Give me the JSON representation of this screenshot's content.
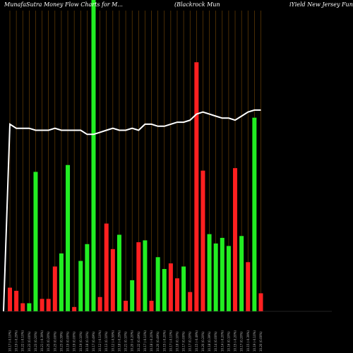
{
  "header": {
    "left": "MunafaSutra  Money Flow  Charts for M...",
    "mid": "(Blackrock Mun",
    "right": "iYield New  Jersey Fund,"
  },
  "chart_data": {
    "type": "bar",
    "title": "MunafaSutra  Money Flow  Charts for M...",
    "x_tick_labels": [
      "",
      ""
    ],
    "categories": [
      "10.17 (-0.10%)",
      "10.19 (-0.29%)",
      "10.22 (-0.10%)",
      "10.23 (0.00%)",
      "10.23 (0.20%)",
      "10.21 (-0.39%)",
      "10.25 (0.20%)",
      "10.23 (0.00%)",
      "10.23 (0.39%)",
      "10.19 (0.00%)",
      "10.19 (0.00%)",
      "10.19 (0.10%)",
      "10.18 (0.10%)",
      "10.17 (0.49%)",
      "10.12 (-0.10%)",
      "10.13 (0.10%)",
      "10.12 (-0.59%)",
      "10.18 (-0.29%)",
      "10.21 (0.10%)",
      "10.20 (-0.20%)",
      "10.22 (0.49%)",
      "10.17 (-0.10%)",
      "10.18 (-0.20%)",
      "10.20 (0.49%)",
      "10.15 (-0.20%)",
      "10.17 (-0.10%)",
      "10.18 (0.10%)",
      "10.17 (0.00%)",
      "10.17 (0.20%)",
      "10.15 (-0.49%)",
      "10.20 (0.20%)",
      "10.18 (0.39%)",
      "10.14 (0.00%)",
      "10.14 (-0.20%)",
      "10.16 (0.10%)",
      "10.15 (-0.20%)",
      "10.17 (0.20%)",
      "10.15 (-0.39%)",
      "10.19 (-0.10%)",
      "10.20 (0.00%)"
    ],
    "series": [
      {
        "colors": [
          "red",
          "red",
          "red",
          "green",
          "green",
          "red",
          "red",
          "red",
          "green",
          "green",
          "red",
          "green",
          "green",
          "green",
          "red",
          "red",
          "red",
          "green",
          "red",
          "green",
          "red",
          "green",
          "red",
          "green",
          "green",
          "red",
          "red",
          "green",
          "red",
          "red",
          "red",
          "green",
          "green",
          "green",
          "green",
          "red",
          "green",
          "red",
          "green",
          "red"
        ],
        "values": [
          38,
          33,
          13,
          13,
          224,
          20,
          20,
          72,
          93,
          235,
          7,
          81,
          108,
          500,
          23,
          141,
          100,
          123,
          17,
          50,
          111,
          114,
          17,
          87,
          68,
          77,
          53,
          72,
          31,
          400,
          226,
          124,
          109,
          118,
          105,
          230,
          121,
          79,
          311,
          29
        ]
      }
    ],
    "price_line": [
      10.12,
      10.1,
      10.1,
      10.1,
      10.09,
      10.09,
      10.09,
      10.1,
      10.09,
      10.09,
      10.09,
      10.09,
      10.07,
      10.07,
      10.08,
      10.09,
      10.1,
      10.09,
      10.09,
      10.1,
      10.09,
      10.12,
      10.12,
      10.11,
      10.11,
      10.12,
      10.13,
      10.13,
      10.14,
      10.17,
      10.18,
      10.17,
      10.16,
      10.15,
      10.15,
      10.14,
      10.16,
      10.18,
      10.19,
      10.19
    ],
    "ylim": [
      0,
      500
    ],
    "grid": true
  }
}
